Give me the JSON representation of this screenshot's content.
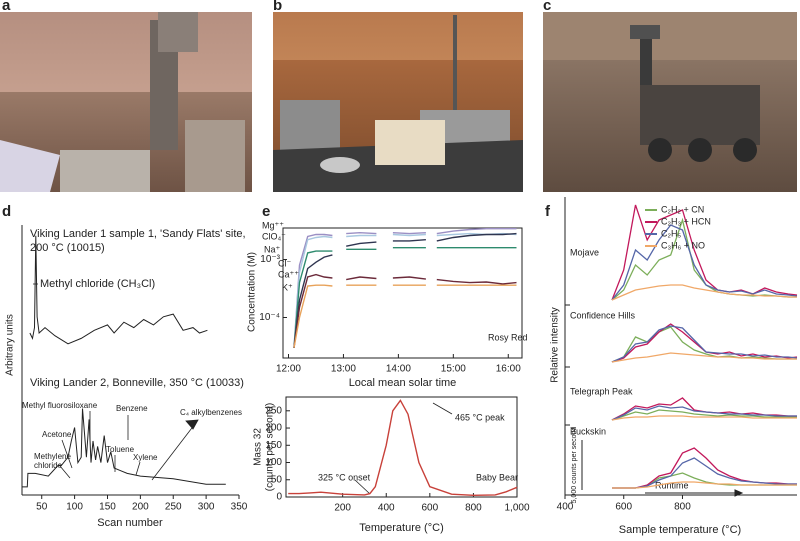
{
  "panel_labels": [
    "a",
    "b",
    "c",
    "d",
    "e",
    "f"
  ],
  "chart_data": [
    {
      "type": "line",
      "title": [
        "Viking Lander 1 sample 1, 'Sandy Flats' site,",
        "200 °C (10015)"
      ],
      "annotations": [
        "Methyl chloride (CH₃Cl)",
        "Viking Lander 2, Bonneville, 350 °C (10033)",
        "Methyl fluorosiloxane",
        "Benzene",
        "Acetone",
        "Methylene",
        "chloride",
        "Toluene",
        "Xylene",
        "C₄ alkylbenzenes"
      ],
      "xlabel": "Scan number",
      "ylabel": "Arbitrary units",
      "xlim": [
        20,
        350
      ],
      "xticks": [
        50,
        100,
        150,
        200,
        250,
        300,
        350
      ],
      "ylim": [
        0,
        100
      ],
      "series": [
        {
          "color": "#222222",
          "x": [
            32,
            36,
            39,
            41,
            43,
            46,
            55,
            70,
            90,
            110,
            130,
            150,
            160,
            175,
            190,
            205,
            220,
            235,
            250,
            265,
            280,
            290,
            302
          ],
          "values": [
            60,
            58,
            62,
            96,
            66,
            60,
            62,
            59,
            56,
            58,
            61,
            63,
            60,
            64,
            62,
            65,
            63,
            66,
            67,
            61,
            62,
            60,
            61
          ]
        },
        {
          "color": "#222222",
          "x": [
            20,
            28,
            29,
            40,
            60,
            75,
            80,
            90,
            95,
            100,
            105,
            110,
            112,
            118,
            122,
            125,
            128,
            132,
            135,
            140,
            145,
            150,
            155,
            160,
            170,
            180,
            200,
            250,
            300,
            330
          ],
          "values": [
            3,
            3,
            8,
            8,
            7,
            11,
            11,
            14,
            20,
            25,
            12,
            14,
            32,
            14,
            28,
            12,
            20,
            13,
            18,
            12,
            22,
            12,
            16,
            10,
            9,
            8,
            7,
            6,
            4,
            4
          ]
        }
      ]
    },
    {
      "type": "line",
      "xlabel": "Local mean solar time",
      "ylabel": "Concentration (M)",
      "annotation": "Rosy Red",
      "log_y": true,
      "xlim": [
        11.9,
        16.25
      ],
      "xticks": [
        {
          "value": 12,
          "label": "12:00"
        },
        {
          "value": 13,
          "label": "13:00"
        },
        {
          "value": 14,
          "label": "14:00"
        },
        {
          "value": 15,
          "label": "15:00"
        },
        {
          "value": 16,
          "label": "16:00"
        }
      ],
      "ylim": [
        2e-05,
        0.0035
      ],
      "yticks": [
        {
          "value": 0.0001,
          "label": "10⁻⁴"
        },
        {
          "value": 0.001,
          "label": "10⁻³"
        }
      ],
      "x": [
        12.1,
        12.2,
        12.35,
        12.5,
        12.65,
        12.8,
        12.9,
        13.05,
        13.3,
        13.6,
        13.75,
        13.9,
        14.2,
        14.5,
        14.6,
        14.7,
        15.0,
        15.3,
        15.6,
        15.9,
        16.15
      ],
      "series": [
        {
          "name": "Mg⁺⁺",
          "color": "#9b8fc4",
          "values": [
            3e-05,
            0.0008,
            0.0025,
            0.0027,
            0.0027,
            0.0026,
            null,
            0.0028,
            0.0029,
            0.0028,
            null,
            0.0029,
            0.0028,
            0.0029,
            null,
            0.0028,
            0.0031,
            0.0033,
            0.0034,
            0.0034,
            0.0034
          ]
        },
        {
          "name": "ClO₄⁻",
          "color": "#a9c8e0",
          "values": [
            3e-05,
            0.0006,
            0.0022,
            0.0024,
            0.0025,
            0.0024,
            null,
            0.0025,
            0.0026,
            0.0026,
            null,
            0.0027,
            0.0026,
            0.0027,
            null,
            0.0026,
            0.0027,
            0.0028,
            0.0027,
            0.0028,
            0.0027
          ]
        },
        {
          "name": "Na⁺",
          "color": "#2e8b6e",
          "values": [
            3e-05,
            0.0004,
            0.0013,
            0.0014,
            0.0014,
            0.0014,
            null,
            0.0015,
            0.0015,
            0.0015,
            null,
            0.0016,
            0.0016,
            0.0016,
            null,
            0.0016,
            0.0016,
            0.0016,
            0.0016,
            0.0016,
            0.0016
          ]
        },
        {
          "name": "Cl⁻",
          "color": "#2f3550",
          "values": [
            3e-05,
            0.0002,
            0.0007,
            0.0009,
            0.0011,
            0.0012,
            null,
            0.0017,
            0.0019,
            0.002,
            null,
            0.0021,
            0.0021,
            0.0022,
            null,
            0.0021,
            0.0024,
            0.0026,
            0.0027,
            0.0027,
            0.0028
          ]
        },
        {
          "name": "Ca⁺⁺",
          "color": "#6b2a3a",
          "values": [
            3e-05,
            0.00015,
            0.0005,
            0.00055,
            0.0005,
            0.00048,
            null,
            0.00045,
            0.0005,
            0.00047,
            null,
            0.00048,
            0.0005,
            0.00046,
            null,
            0.00045,
            0.00042,
            0.0004,
            0.00041,
            0.00038,
            0.0004
          ]
        },
        {
          "name": "K⁺",
          "color": "#e8a25a",
          "values": [
            3e-05,
            0.0001,
            0.00035,
            0.00036,
            0.00036,
            0.00035,
            null,
            0.00036,
            0.00036,
            0.00036,
            null,
            0.00036,
            0.00036,
            0.00036,
            null,
            0.00036,
            0.00036,
            0.00036,
            0.00036,
            0.00036,
            0.00036
          ]
        }
      ]
    },
    {
      "type": "line",
      "xlabel": "Temperature (°C)",
      "ylabel": [
        "Mass 32",
        "(counts per second)"
      ],
      "annotations": [
        "465 °C peak",
        "325 °C onset",
        "Baby Bear"
      ],
      "xlim": [
        -60,
        1000
      ],
      "xticks": [
        200,
        400,
        600,
        800,
        {
          "value": 1000,
          "label": "1,000"
        }
      ],
      "ylim": [
        0,
        290
      ],
      "yticks": [
        0,
        50,
        100,
        150,
        200,
        250
      ],
      "x": [
        -50,
        0,
        50,
        100,
        200,
        300,
        325,
        350,
        400,
        430,
        465,
        500,
        550,
        600,
        700,
        800,
        900,
        950,
        1000
      ],
      "series": [
        {
          "color": "#c8413a",
          "values": [
            10,
            10,
            12,
            14,
            8,
            6,
            10,
            30,
            150,
            250,
            280,
            240,
            100,
            30,
            8,
            5,
            6,
            15,
            28
          ]
        }
      ]
    },
    {
      "type": "line",
      "xlabel": "Sample temperature (°C)",
      "ylabel": "Relative intensity",
      "annotations": [
        "5,000 counts per second",
        "Runtime"
      ],
      "groups": [
        "Mojave",
        "Confidence Hills",
        "Telegraph Peak",
        "Buckskin"
      ],
      "xlim": [
        400,
        1190
      ],
      "xticks": [
        400,
        600,
        800
      ],
      "x": [
        560,
        600,
        640,
        680,
        720,
        760,
        800,
        840,
        880,
        920,
        960,
        1000,
        1040,
        1080,
        1120,
        1160,
        1190
      ],
      "series": [
        {
          "name": "C₂H₂ + CN",
          "color": "#7cae5a",
          "values": [
            [
              0,
              10,
              35,
              25,
              40,
              45,
              80,
              30,
              15,
              8,
              6,
              5,
              4,
              5,
              4,
              3,
              3
            ],
            [
              0,
              5,
              25,
              20,
              30,
              35,
              20,
              12,
              8,
              5,
              6,
              4,
              5,
              4,
              3,
              3,
              3
            ],
            [
              0,
              4,
              8,
              6,
              10,
              9,
              8,
              6,
              5,
              4,
              5,
              4,
              4,
              3,
              3,
              3,
              3
            ],
            [
              0,
              0,
              0,
              2,
              10,
              12,
              15,
              10,
              6,
              4,
              3,
              3,
              3,
              3,
              3,
              3,
              3
            ]
          ]
        },
        {
          "name": "C₂H₃ + HCN",
          "color": "#c2185b",
          "values": [
            [
              0,
              30,
              95,
              60,
              80,
              85,
              90,
              50,
              20,
              10,
              8,
              10,
              6,
              12,
              8,
              6,
              5
            ],
            [
              0,
              4,
              15,
              18,
              30,
              38,
              30,
              20,
              10,
              8,
              10,
              6,
              8,
              5,
              6,
              4,
              5
            ],
            [
              0,
              6,
              14,
              12,
              16,
              15,
              22,
              10,
              8,
              7,
              8,
              6,
              7,
              5,
              5,
              4,
              4
            ],
            [
              0,
              0,
              0,
              3,
              12,
              15,
              35,
              40,
              30,
              18,
              12,
              8,
              6,
              5,
              5,
              4,
              4
            ]
          ]
        },
        {
          "name": "C₂H₅",
          "color": "#5566a8",
          "values": [
            [
              0,
              15,
              50,
              40,
              60,
              75,
              70,
              35,
              15,
              10,
              8,
              9,
              6,
              10,
              6,
              5,
              4
            ],
            [
              0,
              5,
              18,
              20,
              32,
              36,
              34,
              22,
              10,
              9,
              8,
              8,
              6,
              7,
              5,
              5,
              4
            ],
            [
              0,
              5,
              12,
              10,
              14,
              12,
              13,
              9,
              8,
              7,
              6,
              6,
              5,
              5,
              4,
              4,
              4
            ],
            [
              0,
              0,
              0,
              2,
              8,
              12,
              25,
              30,
              22,
              14,
              10,
              7,
              6,
              5,
              4,
              4,
              4
            ]
          ]
        },
        {
          "name": "C₃H₆ + NO",
          "color": "#f0a868",
          "values": [
            [
              0,
              5,
              10,
              12,
              14,
              15,
              15,
              12,
              10,
              8,
              6,
              5,
              5,
              4,
              4,
              3,
              3
            ],
            [
              0,
              2,
              4,
              5,
              7,
              9,
              8,
              7,
              6,
              5,
              5,
              4,
              4,
              3,
              3,
              3,
              3
            ],
            [
              0,
              2,
              3,
              3,
              4,
              4,
              4,
              3,
              3,
              3,
              3,
              3,
              2,
              2,
              2,
              2,
              2
            ],
            [
              0,
              0,
              0,
              1,
              3,
              5,
              6,
              6,
              5,
              4,
              4,
              3,
              3,
              3,
              3,
              3,
              3
            ]
          ]
        }
      ]
    }
  ]
}
